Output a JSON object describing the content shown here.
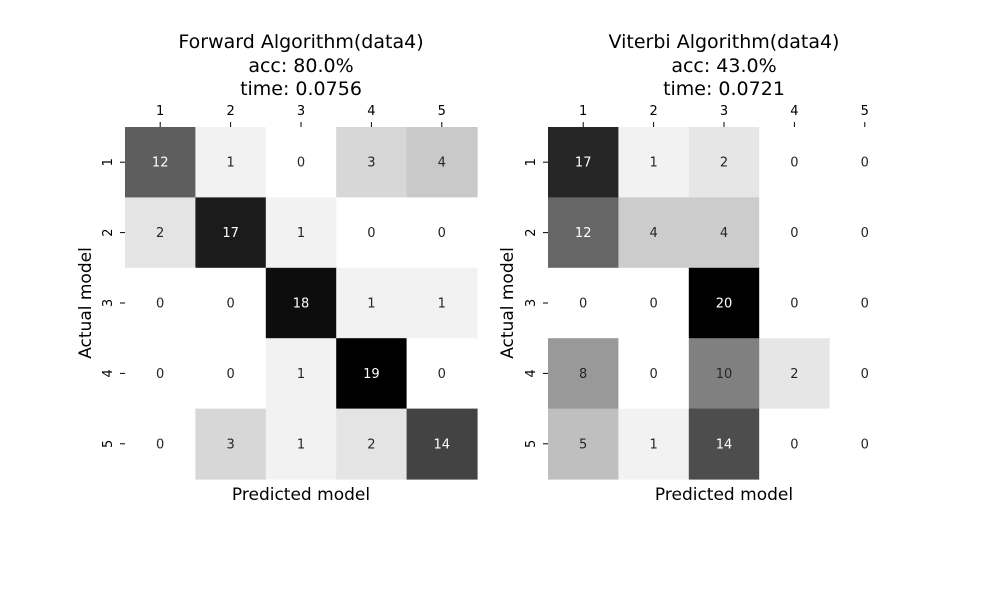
{
  "chart_data": [
    {
      "type": "heatmap",
      "title": [
        "Forward Algorithm(data4)",
        "acc: 80.0%",
        "time: 0.0756"
      ],
      "xlabel": "Predicted model",
      "ylabel": "Actual model",
      "x_ticks": [
        "1",
        "2",
        "3",
        "4",
        "5"
      ],
      "y_ticks": [
        "1",
        "2",
        "3",
        "4",
        "5"
      ],
      "x_tick_position": "top",
      "colormap": "greys",
      "colorbar": false,
      "values": [
        [
          12,
          1,
          0,
          3,
          4
        ],
        [
          2,
          17,
          1,
          0,
          0
        ],
        [
          0,
          0,
          18,
          1,
          1
        ],
        [
          0,
          0,
          1,
          19,
          0
        ],
        [
          0,
          3,
          1,
          2,
          14
        ]
      ]
    },
    {
      "type": "heatmap",
      "title": [
        "Viterbi Algorithm(data4)",
        "acc: 43.0%",
        "time: 0.0721"
      ],
      "xlabel": "Predicted model",
      "ylabel": "Actual model",
      "x_ticks": [
        "1",
        "2",
        "3",
        "4",
        "5"
      ],
      "y_ticks": [
        "1",
        "2",
        "3",
        "4",
        "5"
      ],
      "x_tick_position": "top",
      "colormap": "greys",
      "colorbar": false,
      "values": [
        [
          17,
          1,
          2,
          0,
          0
        ],
        [
          12,
          4,
          4,
          0,
          0
        ],
        [
          0,
          0,
          20,
          0,
          0
        ],
        [
          8,
          0,
          10,
          2,
          0
        ],
        [
          5,
          1,
          14,
          0,
          0
        ]
      ]
    }
  ]
}
